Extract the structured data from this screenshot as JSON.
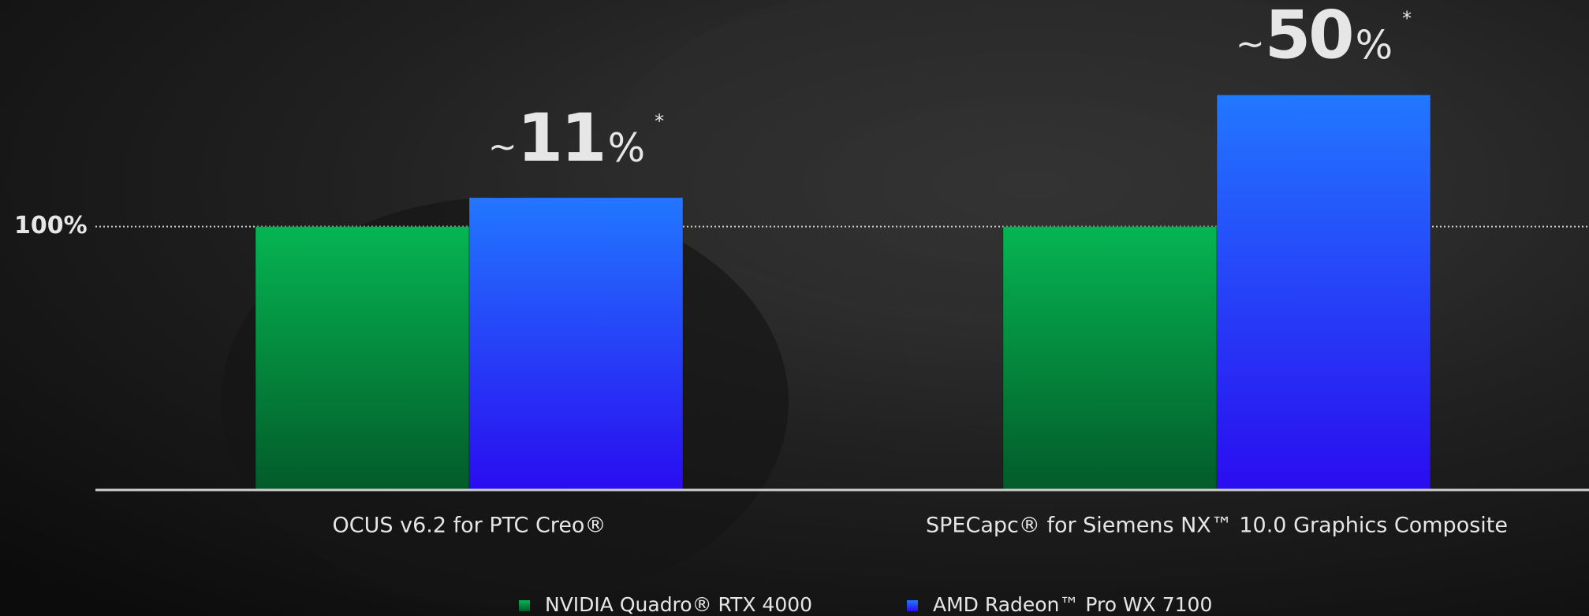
{
  "chart_data": {
    "type": "bar",
    "categories": [
      "OCUS v6.2 for PTC Creo®",
      "SPECapc® for Siemens NX™ 10.0 Graphics Composite"
    ],
    "series": [
      {
        "name": "NVIDIA Quadro® RTX 4000",
        "color": "#05b552",
        "values": [
          100,
          100
        ]
      },
      {
        "name": "AMD Radeon™ Pro WX 7100",
        "color": "#2277ff",
        "values": [
          111,
          150
        ]
      }
    ],
    "annotations": [
      {
        "prefix": "~",
        "number": "11",
        "suffix": "%",
        "mark": "*"
      },
      {
        "prefix": "~",
        "number": "50",
        "suffix": "%",
        "mark": "*"
      }
    ],
    "ylim": [
      0,
      186
    ],
    "yticks": [
      {
        "value": 100,
        "label": "100%"
      }
    ],
    "grid": true
  }
}
